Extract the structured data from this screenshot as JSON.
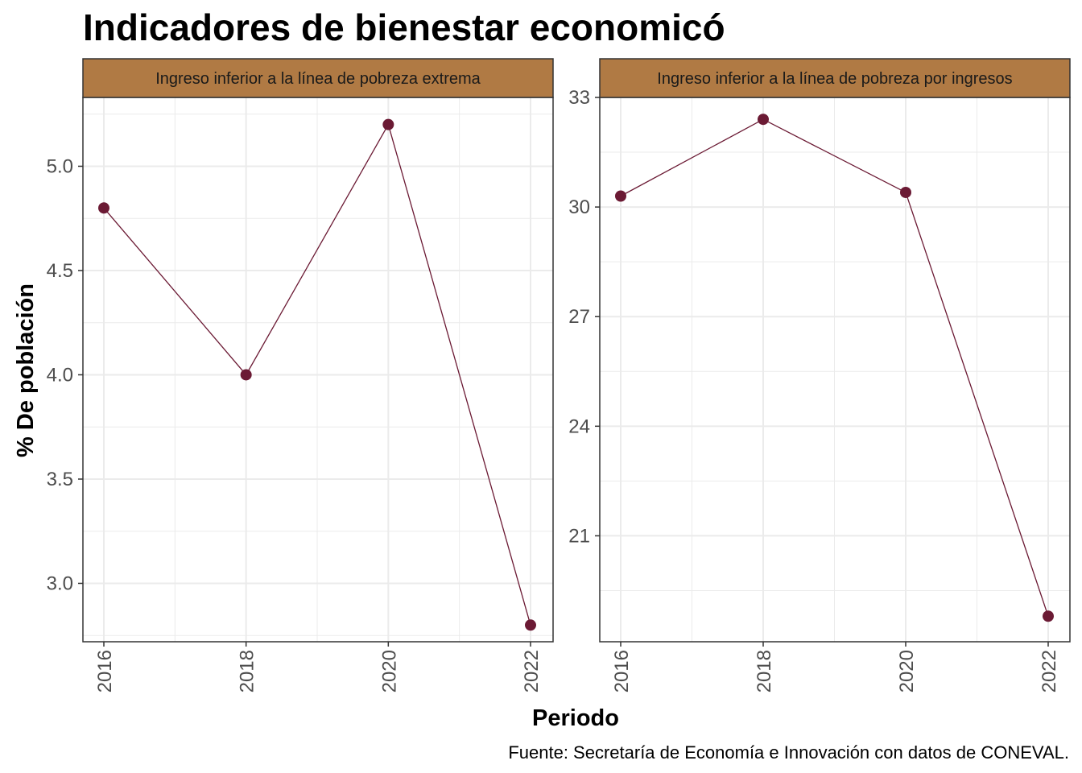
{
  "title": "Indicadores de bienestar economicó",
  "caption": "Fuente: Secretaría de Economía e Innovación con datos de CONEVAL.",
  "colors": {
    "strip_fill": "#b07a44",
    "series": "#6b1a34",
    "grid": "#ebebeb",
    "panel_border": "#333333"
  },
  "chart_data": {
    "type": "line",
    "xlabel": "Periodo",
    "ylabel": "% De población",
    "x_ticks": [
      "2016",
      "2018",
      "2020",
      "2022"
    ],
    "grid": true,
    "panels": [
      {
        "strip": "Ingreso inferior a la línea de pobreza extrema",
        "x": [
          2016,
          2018,
          2020,
          2022
        ],
        "y": [
          4.8,
          4.0,
          5.2,
          2.8
        ],
        "ylim": [
          2.72,
          5.33
        ],
        "y_ticks": [
          "3.0",
          "3.5",
          "4.0",
          "4.5",
          "5.0"
        ]
      },
      {
        "strip": "Ingreso inferior a la línea de pobreza por ingresos",
        "x": [
          2016,
          2018,
          2020,
          2022
        ],
        "y": [
          30.3,
          32.4,
          30.4,
          18.8
        ],
        "ylim": [
          18.1,
          33.0
        ],
        "y_ticks": [
          "21",
          "24",
          "27",
          "30",
          "33"
        ]
      }
    ]
  }
}
